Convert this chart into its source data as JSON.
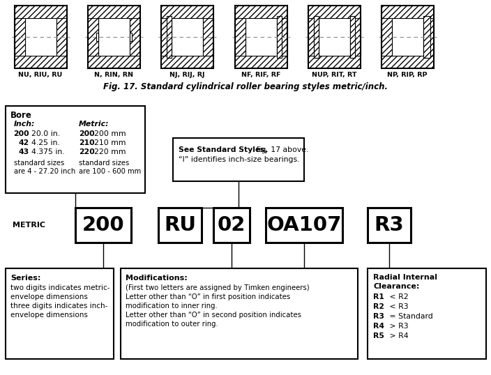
{
  "fig_caption": "Fig. 17. Standard cylindrical roller bearing styles metric/inch.",
  "bearing_labels": [
    "NU, RIU, RU",
    "N, RIN, RN",
    "NJ, RIJ, RJ",
    "NF, RIF, RF",
    "NUP, RIT, RT",
    "NP, RIP, RP"
  ],
  "metric_label": "METRIC",
  "code_boxes": [
    "200",
    "RU",
    "02",
    "OA107",
    "R3"
  ],
  "bore_box_title": "Bore",
  "bore_inch_header": "Inch:",
  "bore_metric_header": "Metric:",
  "bore_inch_rows": [
    [
      "200",
      "20.0 in."
    ],
    [
      "42",
      "4.25 in."
    ],
    [
      "43",
      "4.375 in."
    ]
  ],
  "bore_inch_footer": [
    "standard sizes",
    "are 4 - 27.20 inch"
  ],
  "bore_metric_rows": [
    [
      "200",
      "200 mm"
    ],
    [
      "210",
      "210 mm"
    ],
    [
      "220",
      "220 mm"
    ]
  ],
  "bore_metric_footer": [
    "standard sizes",
    "are 100 - 600 mm"
  ],
  "style_box_line1_bold": "See Standard Styles,",
  "style_box_line1_normal": " fig. 17 above.",
  "style_box_line2": "“I” identifies inch-size bearings.",
  "series_box_title": "Series:",
  "series_box_text": [
    "two digits indicates metric-",
    "envelope dimensions",
    "three digits indicates inch-",
    "envelope dimensions"
  ],
  "mod_box_title": "Modifications:",
  "mod_box_text": [
    "(First two letters are assigned by Timken engineers)",
    "Letter other than “O” in first position indicates",
    "modification to inner ring.",
    "Letter other than “O” in second position indicates",
    "modification to outer ring."
  ],
  "ric_line1": "Radial Internal",
  "ric_line2": "Clearance:",
  "ric_bold": [
    "R1",
    "R2",
    "R3",
    "R4",
    "R5"
  ],
  "ric_rest": [
    " < R2",
    " < R3",
    " = Standard",
    " > R3",
    " > R4"
  ],
  "bg_color": "#ffffff",
  "text_color": "#000000",
  "caption_color": "#000000"
}
